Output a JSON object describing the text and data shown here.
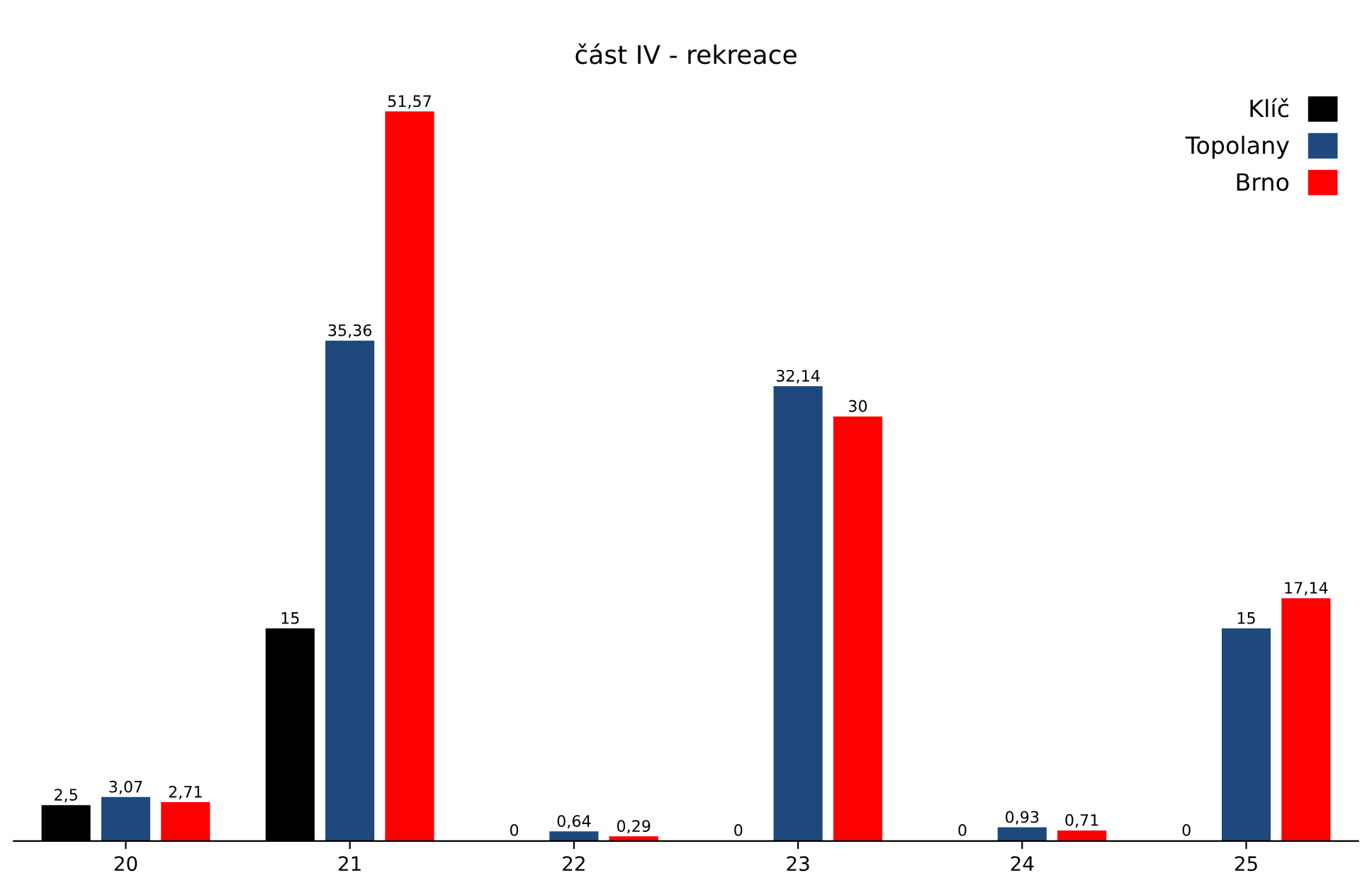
{
  "chart_data": {
    "type": "bar",
    "title": "část IV - rekreace",
    "categories": [
      "20",
      "21",
      "22",
      "23",
      "24",
      "25"
    ],
    "series": [
      {
        "name": "Klíč",
        "color": "#000000",
        "values": [
          2.5,
          15,
          0,
          0,
          0,
          0
        ],
        "value_labels": [
          "2,5",
          "15",
          "0",
          "0",
          "0",
          "0"
        ]
      },
      {
        "name": "Topolany",
        "color": "#1f497d",
        "values": [
          3.07,
          35.36,
          0.64,
          32.14,
          0.93,
          15
        ],
        "value_labels": [
          "3,07",
          "35,36",
          "0,64",
          "32,14",
          "0,93",
          "15"
        ]
      },
      {
        "name": "Brno",
        "color": "#ff0000",
        "values": [
          2.71,
          51.57,
          0.29,
          30,
          0.71,
          17.14
        ],
        "value_labels": [
          "2,71",
          "51,57",
          "0,29",
          "30",
          "0,71",
          "17,14"
        ]
      }
    ],
    "legend": "top right",
    "grid": false,
    "tick_labels": "x"
  }
}
